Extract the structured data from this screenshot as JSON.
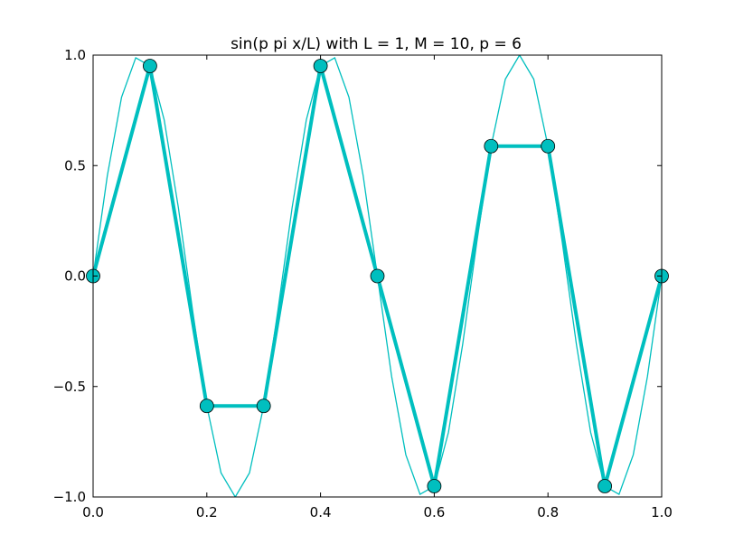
{
  "chart_data": {
    "type": "line",
    "title": "sin(p pi x/L) with L = 1, M = 10, p = 6",
    "xlabel": "",
    "ylabel": "",
    "xlim": [
      0.0,
      1.0
    ],
    "ylim": [
      -1.0,
      1.0
    ],
    "grid": false,
    "x_ticks": [
      0.0,
      0.2,
      0.4,
      0.6,
      0.8,
      1.0
    ],
    "x_tick_labels": [
      "0.0",
      "0.2",
      "0.4",
      "0.6",
      "0.8",
      "1.0"
    ],
    "y_ticks": [
      -1.0,
      -0.5,
      0.0,
      0.5,
      1.0
    ],
    "y_tick_labels": [
      "−1.0",
      "−0.5",
      "0.0",
      "0.5",
      "1.0"
    ],
    "series": [
      {
        "style": "thin continuous line",
        "color": "#00BFBF",
        "function": "sin(6 pi x)",
        "x": [
          0.0,
          0.025,
          0.05,
          0.075,
          0.1,
          0.125,
          0.15,
          0.175,
          0.2,
          0.225,
          0.25,
          0.275,
          0.3,
          0.325,
          0.35,
          0.375,
          0.4,
          0.425,
          0.45,
          0.475,
          0.5,
          0.525,
          0.55,
          0.575,
          0.6,
          0.625,
          0.65,
          0.675,
          0.7,
          0.725,
          0.75,
          0.775,
          0.8,
          0.825,
          0.85,
          0.875,
          0.9,
          0.925,
          0.95,
          0.975,
          1.0
        ],
        "y": [
          0.0,
          0.454,
          0.809,
          0.988,
          0.951,
          0.707,
          0.309,
          -0.156,
          -0.588,
          -0.891,
          -1.0,
          -0.891,
          -0.588,
          -0.156,
          0.309,
          0.707,
          0.951,
          0.988,
          0.809,
          0.454,
          0.0,
          -0.454,
          -0.809,
          -0.988,
          -0.951,
          -0.707,
          -0.309,
          0.156,
          0.588,
          0.891,
          1.0,
          0.891,
          0.588,
          0.156,
          -0.309,
          -0.707,
          -0.951,
          -0.988,
          -0.809,
          -0.454,
          0.0
        ]
      },
      {
        "style": "thick line with circle markers",
        "color": "#00BFBF",
        "x": [
          0.0,
          0.1,
          0.2,
          0.3,
          0.4,
          0.5,
          0.6,
          0.7,
          0.8,
          0.9,
          1.0
        ],
        "y": [
          0.0,
          0.951,
          -0.588,
          -0.588,
          0.951,
          0.0,
          -0.951,
          0.588,
          0.588,
          -0.951,
          0.0
        ]
      }
    ]
  }
}
